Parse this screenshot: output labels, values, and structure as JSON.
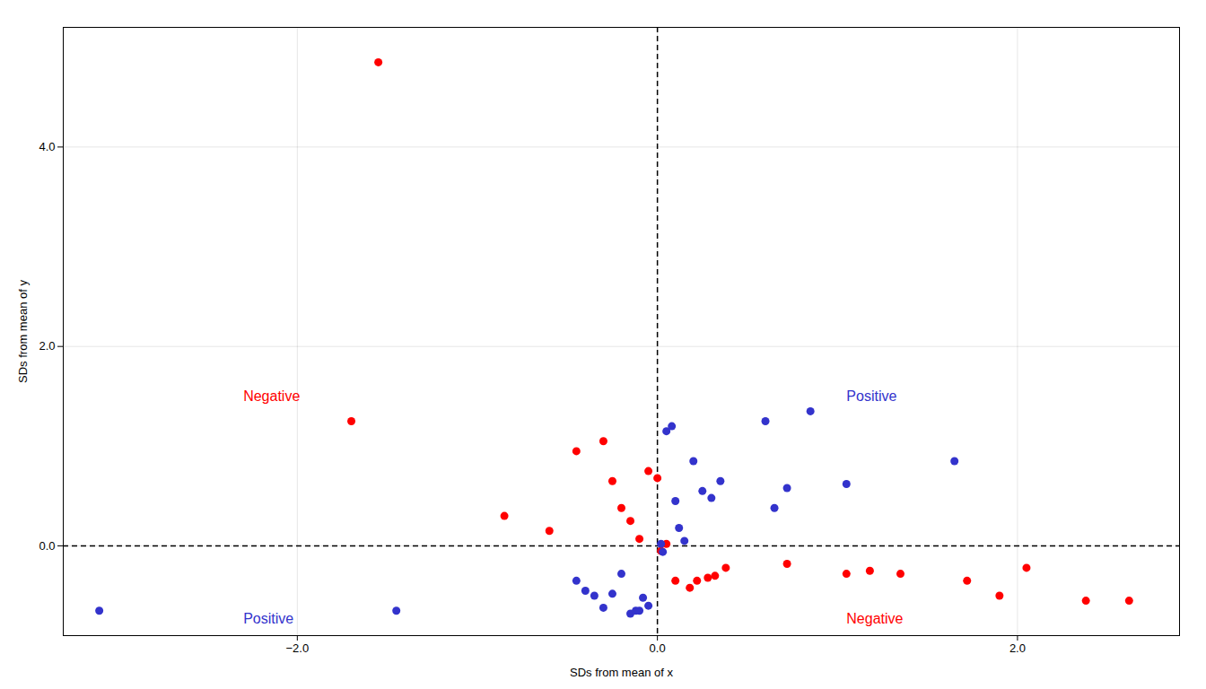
{
  "chart_data": {
    "type": "scatter",
    "xlabel": "SDs from mean of x",
    "ylabel": "SDs from mean of y",
    "xlim": [
      -3.3,
      2.9
    ],
    "ylim": [
      -0.9,
      5.2
    ],
    "xticks": [
      -2,
      0,
      2
    ],
    "yticks": [
      0,
      2,
      4
    ],
    "grid": true,
    "series": [
      {
        "color": "#FF0000",
        "values": [
          [
            -1.55,
            4.85
          ],
          [
            -1.7,
            1.25
          ],
          [
            -0.85,
            0.3
          ],
          [
            -0.6,
            0.15
          ],
          [
            -0.45,
            0.95
          ],
          [
            -0.3,
            1.05
          ],
          [
            -0.25,
            0.65
          ],
          [
            -0.2,
            0.38
          ],
          [
            -0.15,
            0.25
          ],
          [
            -0.1,
            0.07
          ],
          [
            -0.05,
            0.75
          ],
          [
            0.0,
            0.68
          ],
          [
            0.02,
            -0.05
          ],
          [
            0.05,
            0.02
          ],
          [
            0.1,
            -0.35
          ],
          [
            0.18,
            -0.42
          ],
          [
            0.22,
            -0.35
          ],
          [
            0.28,
            -0.32
          ],
          [
            0.32,
            -0.3
          ],
          [
            0.38,
            -0.22
          ],
          [
            0.72,
            -0.18
          ],
          [
            1.05,
            -0.28
          ],
          [
            1.18,
            -0.25
          ],
          [
            1.35,
            -0.28
          ],
          [
            1.72,
            -0.35
          ],
          [
            1.9,
            -0.5
          ],
          [
            2.05,
            -0.22
          ],
          [
            2.38,
            -0.55
          ],
          [
            2.62,
            -0.55
          ]
        ]
      },
      {
        "color": "#3333CC",
        "values": [
          [
            -3.1,
            -0.65
          ],
          [
            -1.45,
            -0.65
          ],
          [
            -0.45,
            -0.35
          ],
          [
            -0.4,
            -0.45
          ],
          [
            -0.35,
            -0.5
          ],
          [
            -0.3,
            -0.62
          ],
          [
            -0.25,
            -0.48
          ],
          [
            -0.2,
            -0.28
          ],
          [
            -0.15,
            -0.68
          ],
          [
            -0.12,
            -0.65
          ],
          [
            -0.1,
            -0.65
          ],
          [
            -0.08,
            -0.52
          ],
          [
            -0.05,
            -0.6
          ],
          [
            0.02,
            0.02
          ],
          [
            0.03,
            -0.06
          ],
          [
            0.05,
            1.15
          ],
          [
            0.08,
            1.2
          ],
          [
            0.1,
            0.45
          ],
          [
            0.12,
            0.18
          ],
          [
            0.15,
            0.05
          ],
          [
            0.2,
            0.85
          ],
          [
            0.25,
            0.55
          ],
          [
            0.3,
            0.48
          ],
          [
            0.35,
            0.65
          ],
          [
            0.6,
            1.25
          ],
          [
            0.65,
            0.38
          ],
          [
            0.72,
            0.58
          ],
          [
            0.85,
            1.35
          ],
          [
            1.05,
            0.62
          ],
          [
            1.65,
            0.85
          ]
        ]
      }
    ],
    "reference_lines": [
      {
        "axis": "x",
        "value": 0,
        "color": "#000000",
        "line_style": "dashed"
      },
      {
        "axis": "y",
        "value": 0,
        "color": "#000000",
        "line_style": "dashed"
      }
    ],
    "annotations": [
      {
        "text": "Negative",
        "x": -2.3,
        "y": 1.5,
        "color": "#FF0000"
      },
      {
        "text": "Positive",
        "x": 1.05,
        "y": 1.5,
        "color": "#3333CC"
      },
      {
        "text": "Positive",
        "x": -2.3,
        "y": -0.73,
        "color": "#3333CC"
      },
      {
        "text": "Negative",
        "x": 1.05,
        "y": -0.73,
        "color": "#FF0000"
      }
    ]
  }
}
